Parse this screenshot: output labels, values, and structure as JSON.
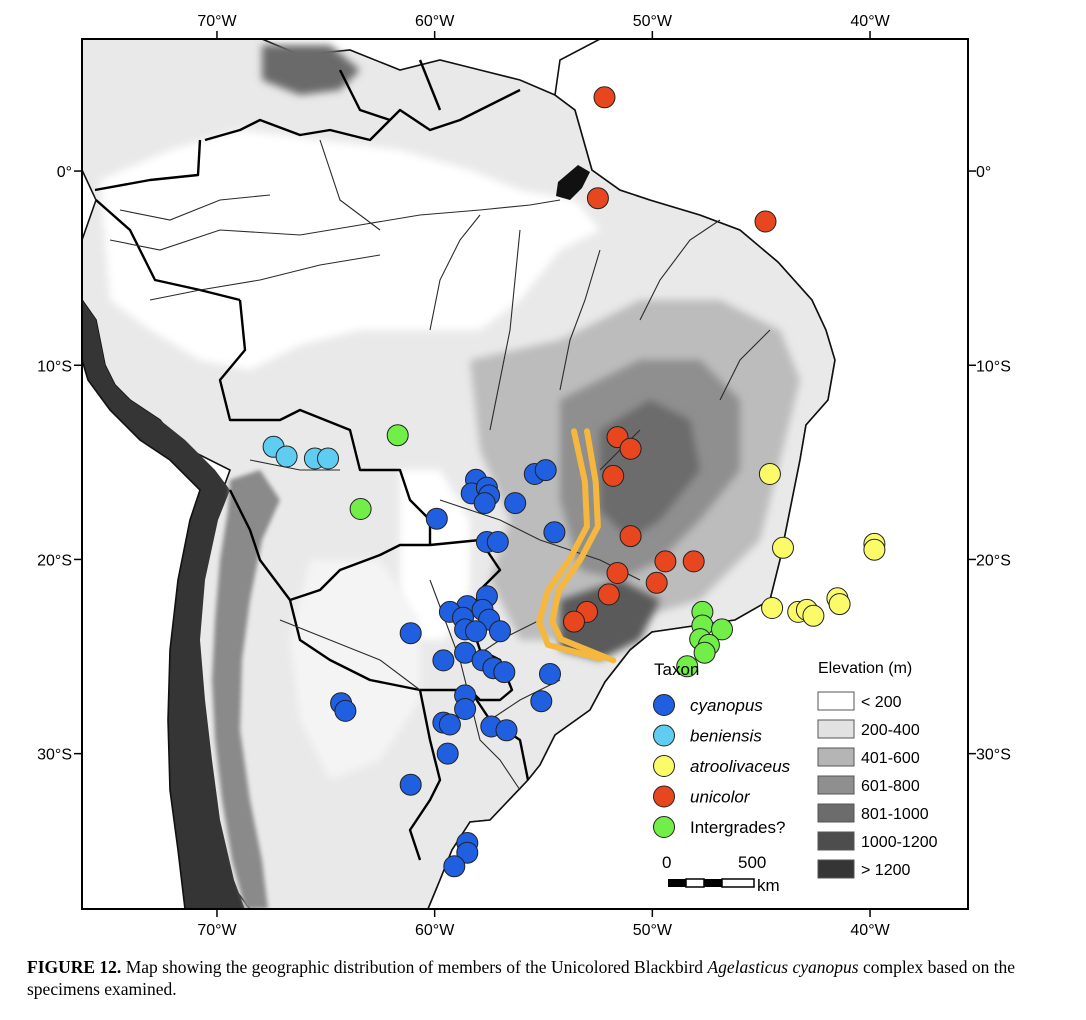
{
  "map": {
    "lon_ticks": [
      "70°W",
      "60°W",
      "50°W",
      "40°W"
    ],
    "lat_ticks": [
      "0°",
      "10°S",
      "20°S",
      "30°S"
    ],
    "bounds": {
      "lon_min": -76.2,
      "lon_max": -35.5,
      "lat_min": -38.0,
      "lat_max": 6.8
    },
    "tick_lons": [
      -70,
      -60,
      -50,
      -40
    ],
    "tick_lats": [
      0,
      -10,
      -20,
      -30
    ]
  },
  "legend_taxon": {
    "title": "Taxon",
    "items": [
      {
        "label": "cyanopus",
        "italic": true,
        "color": "#1f5fe0"
      },
      {
        "label": "beniensis",
        "italic": true,
        "color": "#5fcdf2"
      },
      {
        "label": "atroolivaceus",
        "italic": true,
        "color": "#fbfb6a"
      },
      {
        "label": "unicolor",
        "italic": true,
        "color": "#e8461e"
      },
      {
        "label": "Intergrades?",
        "italic": false,
        "color": "#72ee48"
      }
    ]
  },
  "legend_elevation": {
    "title": "Elevation (m)",
    "classes": [
      {
        "label": "< 200",
        "color": "#ffffff"
      },
      {
        "label": "200-400",
        "color": "#e2e2e2"
      },
      {
        "label": "401-600",
        "color": "#b5b5b5"
      },
      {
        "label": "601-800",
        "color": "#8f8f8f"
      },
      {
        "label": "801-1000",
        "color": "#6c6c6c"
      },
      {
        "label": "1000-1200",
        "color": "#4d4d4d"
      },
      {
        "label": "> 1200",
        "color": "#353535"
      }
    ]
  },
  "scale_bar": {
    "start_label": "0",
    "end_label": "500",
    "unit": "km"
  },
  "boundary_line_color": "#f5b73e",
  "points": {
    "cyanopus": [
      [
        -58.1,
        -15.9
      ],
      [
        -58.3,
        -16.6
      ],
      [
        -57.6,
        -16.3
      ],
      [
        -57.5,
        -16.7
      ],
      [
        -57.7,
        -17.1
      ],
      [
        -56.3,
        -17.1
      ],
      [
        -55.4,
        -15.6
      ],
      [
        -54.9,
        -15.4
      ],
      [
        -59.9,
        -17.9
      ],
      [
        -57.6,
        -19.1
      ],
      [
        -57.1,
        -19.1
      ],
      [
        -54.5,
        -18.6
      ],
      [
        -57.6,
        -21.9
      ],
      [
        -58.5,
        -22.4
      ],
      [
        -59.3,
        -22.7
      ],
      [
        -57.8,
        -22.6
      ],
      [
        -58.7,
        -23.0
      ],
      [
        -57.5,
        -23.1
      ],
      [
        -58.6,
        -23.6
      ],
      [
        -58.1,
        -23.7
      ],
      [
        -57.0,
        -23.7
      ],
      [
        -61.1,
        -23.8
      ],
      [
        -58.6,
        -24.8
      ],
      [
        -57.8,
        -25.2
      ],
      [
        -57.3,
        -25.6
      ],
      [
        -56.8,
        -25.8
      ],
      [
        -59.6,
        -25.2
      ],
      [
        -54.7,
        -25.9
      ],
      [
        -58.6,
        -27.0
      ],
      [
        -58.6,
        -27.7
      ],
      [
        -55.1,
        -27.3
      ],
      [
        -64.3,
        -27.4
      ],
      [
        -64.1,
        -27.8
      ],
      [
        -59.6,
        -28.4
      ],
      [
        -59.3,
        -28.5
      ],
      [
        -57.4,
        -28.6
      ],
      [
        -56.7,
        -28.8
      ],
      [
        -59.4,
        -30.0
      ],
      [
        -61.1,
        -31.6
      ],
      [
        -58.5,
        -34.6
      ],
      [
        -58.5,
        -35.1
      ],
      [
        -59.1,
        -35.8
      ]
    ],
    "beniensis": [
      [
        -67.4,
        -14.2
      ],
      [
        -66.8,
        -14.7
      ],
      [
        -65.5,
        -14.8
      ],
      [
        -64.9,
        -14.8
      ]
    ],
    "atroolivaceus": [
      [
        -44.6,
        -15.6
      ],
      [
        -44.0,
        -19.4
      ],
      [
        -39.8,
        -19.2
      ],
      [
        -39.8,
        -19.5
      ],
      [
        -44.5,
        -22.5
      ],
      [
        -43.3,
        -22.7
      ],
      [
        -42.9,
        -22.6
      ],
      [
        -42.6,
        -22.9
      ],
      [
        -41.5,
        -22.0
      ],
      [
        -41.4,
        -22.3
      ]
    ],
    "unicolor": [
      [
        -52.2,
        3.8
      ],
      [
        -52.5,
        -1.4
      ],
      [
        -44.8,
        -2.6
      ],
      [
        -51.6,
        -13.7
      ],
      [
        -51.0,
        -14.3
      ],
      [
        -51.8,
        -15.7
      ],
      [
        -51.0,
        -18.8
      ],
      [
        -51.6,
        -20.7
      ],
      [
        -49.4,
        -20.1
      ],
      [
        -48.1,
        -20.1
      ],
      [
        -49.8,
        -21.2
      ],
      [
        -52.0,
        -21.8
      ],
      [
        -53.0,
        -22.7
      ],
      [
        -53.6,
        -23.2
      ]
    ],
    "intergrades": [
      [
        -61.7,
        -13.6
      ],
      [
        -63.4,
        -17.4
      ],
      [
        -47.7,
        -22.7
      ],
      [
        -47.7,
        -23.4
      ],
      [
        -46.8,
        -23.6
      ],
      [
        -47.8,
        -24.1
      ],
      [
        -47.4,
        -24.4
      ],
      [
        -47.6,
        -24.8
      ],
      [
        -48.4,
        -25.5
      ]
    ]
  },
  "boundary_line": [
    [
      [
        -53.6,
        -13.4
      ],
      [
        -53.1,
        -16.0
      ],
      [
        -53.0,
        -18.3
      ],
      [
        -53.8,
        -20.0
      ],
      [
        -54.8,
        -21.6
      ],
      [
        -55.2,
        -23.2
      ],
      [
        -54.8,
        -24.4
      ],
      [
        -52.4,
        -25.1
      ]
    ],
    [
      [
        -53.0,
        -13.4
      ],
      [
        -52.6,
        -16.0
      ],
      [
        -52.5,
        -18.3
      ],
      [
        -53.3,
        -20.0
      ],
      [
        -54.3,
        -21.6
      ],
      [
        -54.6,
        -23.2
      ],
      [
        -54.2,
        -24.1
      ],
      [
        -51.8,
        -25.2
      ]
    ]
  ],
  "caption": {
    "label": "FIGURE 12.",
    "text_before": " Map showing the geographic distribution of members of the Unicolored Blackbird ",
    "species": "Agelasticus cyanopus",
    "text_after": " complex based on the specimens examined."
  }
}
